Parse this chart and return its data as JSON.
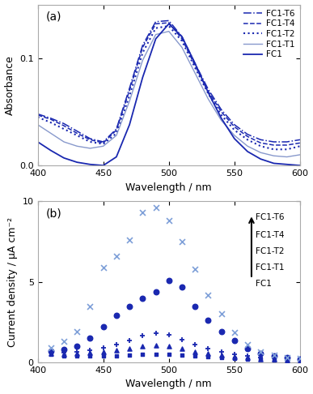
{
  "title_a": "(a)",
  "title_b": "(b)",
  "wavelengths": [
    400,
    410,
    420,
    430,
    440,
    450,
    460,
    470,
    480,
    490,
    500,
    510,
    520,
    530,
    540,
    550,
    560,
    570,
    580,
    590,
    600
  ],
  "abs_FC1": [
    0.022,
    0.014,
    0.007,
    0.003,
    0.001,
    0.0,
    0.008,
    0.038,
    0.082,
    0.118,
    0.132,
    0.12,
    0.095,
    0.068,
    0.044,
    0.025,
    0.013,
    0.006,
    0.002,
    0.001,
    0.0
  ],
  "abs_FC1T1": [
    0.038,
    0.03,
    0.022,
    0.018,
    0.016,
    0.018,
    0.028,
    0.06,
    0.098,
    0.122,
    0.125,
    0.11,
    0.086,
    0.062,
    0.042,
    0.028,
    0.018,
    0.012,
    0.009,
    0.008,
    0.01
  ],
  "abs_FC1T2": [
    0.045,
    0.04,
    0.034,
    0.028,
    0.022,
    0.02,
    0.03,
    0.065,
    0.105,
    0.128,
    0.13,
    0.116,
    0.091,
    0.067,
    0.047,
    0.033,
    0.024,
    0.018,
    0.015,
    0.015,
    0.018
  ],
  "abs_FC1T4": [
    0.047,
    0.043,
    0.037,
    0.03,
    0.024,
    0.021,
    0.033,
    0.07,
    0.11,
    0.132,
    0.133,
    0.118,
    0.093,
    0.069,
    0.05,
    0.036,
    0.027,
    0.021,
    0.019,
    0.019,
    0.021
  ],
  "abs_FC1T6": [
    0.048,
    0.044,
    0.039,
    0.032,
    0.025,
    0.022,
    0.034,
    0.072,
    0.112,
    0.134,
    0.135,
    0.12,
    0.095,
    0.071,
    0.052,
    0.038,
    0.029,
    0.024,
    0.022,
    0.022,
    0.024
  ],
  "pc_wavelengths": [
    410,
    420,
    430,
    440,
    450,
    460,
    470,
    480,
    490,
    500,
    510,
    520,
    530,
    540,
    550,
    560,
    570,
    580,
    590,
    600
  ],
  "pc_FC1": [
    0.5,
    0.4,
    0.4,
    0.4,
    0.4,
    0.4,
    0.45,
    0.5,
    0.5,
    0.5,
    0.45,
    0.4,
    0.35,
    0.3,
    0.25,
    0.2,
    0.18,
    0.15,
    0.12,
    0.1
  ],
  "pc_FC1T1": [
    0.55,
    0.5,
    0.55,
    0.6,
    0.65,
    0.75,
    0.85,
    1.0,
    1.05,
    1.0,
    0.85,
    0.65,
    0.55,
    0.45,
    0.35,
    0.28,
    0.22,
    0.18,
    0.15,
    0.12
  ],
  "pc_FC1T2": [
    0.6,
    0.6,
    0.65,
    0.75,
    0.9,
    1.1,
    1.35,
    1.65,
    1.8,
    1.7,
    1.4,
    1.1,
    0.85,
    0.65,
    0.5,
    0.38,
    0.3,
    0.24,
    0.2,
    0.18
  ],
  "pc_FC1T4": [
    0.7,
    0.8,
    1.0,
    1.5,
    2.2,
    2.9,
    3.5,
    4.0,
    4.4,
    5.1,
    4.7,
    3.5,
    2.6,
    1.9,
    1.35,
    0.85,
    0.55,
    0.38,
    0.28,
    0.2
  ],
  "pc_FC1T6": [
    0.9,
    1.3,
    1.9,
    3.5,
    5.9,
    6.6,
    7.6,
    9.3,
    9.6,
    8.8,
    7.5,
    5.8,
    4.2,
    3.0,
    1.85,
    1.1,
    0.65,
    0.45,
    0.32,
    0.25
  ],
  "xlim": [
    400,
    600
  ],
  "abs_ylim": [
    0,
    0.15
  ],
  "pc_ylim": [
    0,
    10
  ],
  "xlabel": "Wavelength / nm",
  "ylabel_a": "Absorbance",
  "ylabel_b": "Current density / μA cm⁻²",
  "legend_labels": [
    "FC1-T6",
    "FC1-T4",
    "FC1-T2",
    "FC1-T1",
    "FC1"
  ],
  "xticks": [
    400,
    450,
    500,
    550,
    600
  ],
  "abs_yticks": [
    0,
    0.1
  ],
  "pc_yticks": [
    0,
    5,
    10
  ],
  "dark_blue": "#1a28b0",
  "light_blue_T1": "#8899cc",
  "light_blue_T6": "#7fa0d8"
}
